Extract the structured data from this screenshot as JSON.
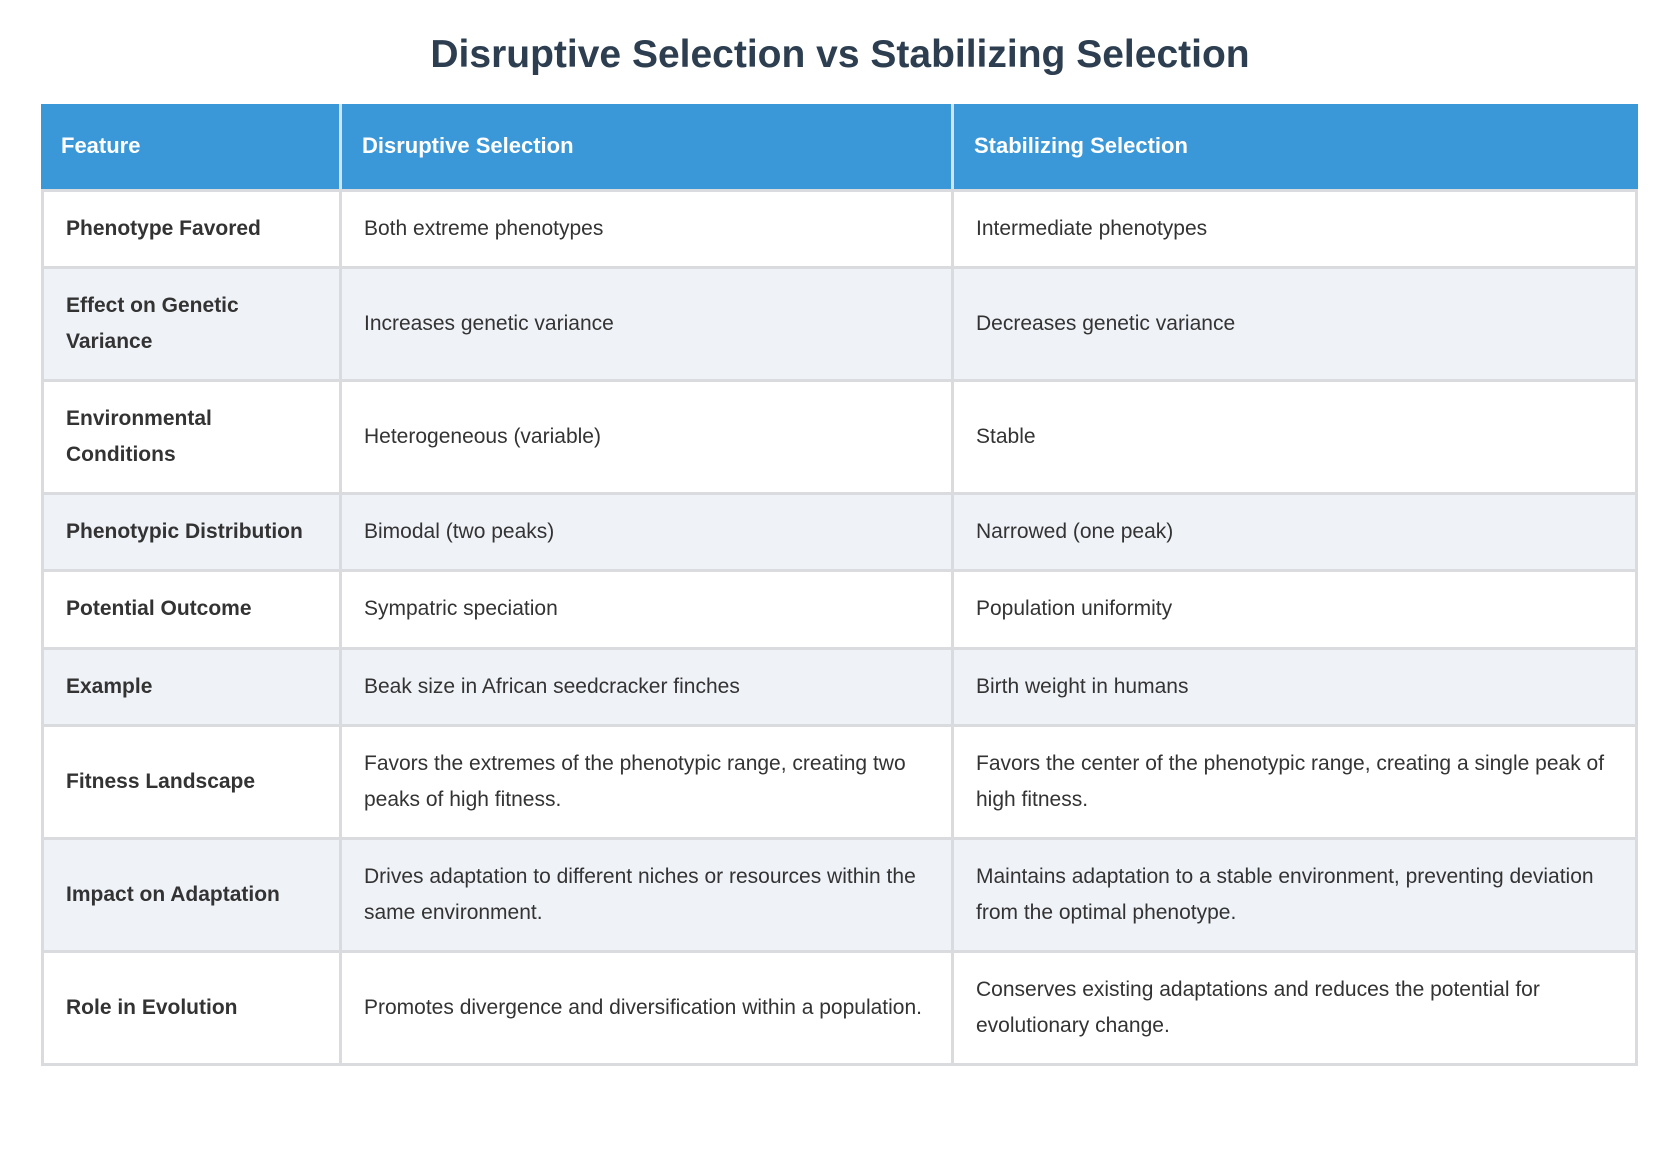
{
  "page": {
    "title": "Disruptive Selection vs Stabilizing Selection"
  },
  "colors": {
    "header_bg": "#3a97d8",
    "header_text": "#ffffff",
    "title_text": "#2c3e50",
    "body_text": "#333333",
    "row_stripe": "#eff2f7",
    "row_white": "#ffffff",
    "border": "#d9dbde",
    "page_bg": "#ffffff"
  },
  "table": {
    "columns": [
      "Feature",
      "Disruptive Selection",
      "Stabilizing Selection"
    ],
    "rows": [
      {
        "feature": "Phenotype Favored",
        "disruptive": "Both extreme phenotypes",
        "stabilizing": "Intermediate phenotypes"
      },
      {
        "feature": "Effect on Genetic Variance",
        "disruptive": "Increases genetic variance",
        "stabilizing": "Decreases genetic variance"
      },
      {
        "feature": "Environmental Conditions",
        "disruptive": "Heterogeneous (variable)",
        "stabilizing": "Stable"
      },
      {
        "feature": "Phenotypic Distribution",
        "disruptive": "Bimodal (two peaks)",
        "stabilizing": "Narrowed (one peak)"
      },
      {
        "feature": "Potential Outcome",
        "disruptive": "Sympatric speciation",
        "stabilizing": "Population uniformity"
      },
      {
        "feature": "Example",
        "disruptive": "Beak size in African seedcracker finches",
        "stabilizing": "Birth weight in humans"
      },
      {
        "feature": "Fitness Landscape",
        "disruptive": "Favors the extremes of the phenotypic range, creating two peaks of high fitness.",
        "stabilizing": "Favors the center of the phenotypic range, creating a single peak of high fitness."
      },
      {
        "feature": "Impact on Adaptation",
        "disruptive": "Drives adaptation to different niches or resources within the same environment.",
        "stabilizing": "Maintains adaptation to a stable environment, preventing deviation from the optimal phenotype."
      },
      {
        "feature": "Role in Evolution",
        "disruptive": "Promotes divergence and diversification within a population.",
        "stabilizing": "Conserves existing adaptations and reduces the potential for evolutionary change."
      }
    ]
  }
}
